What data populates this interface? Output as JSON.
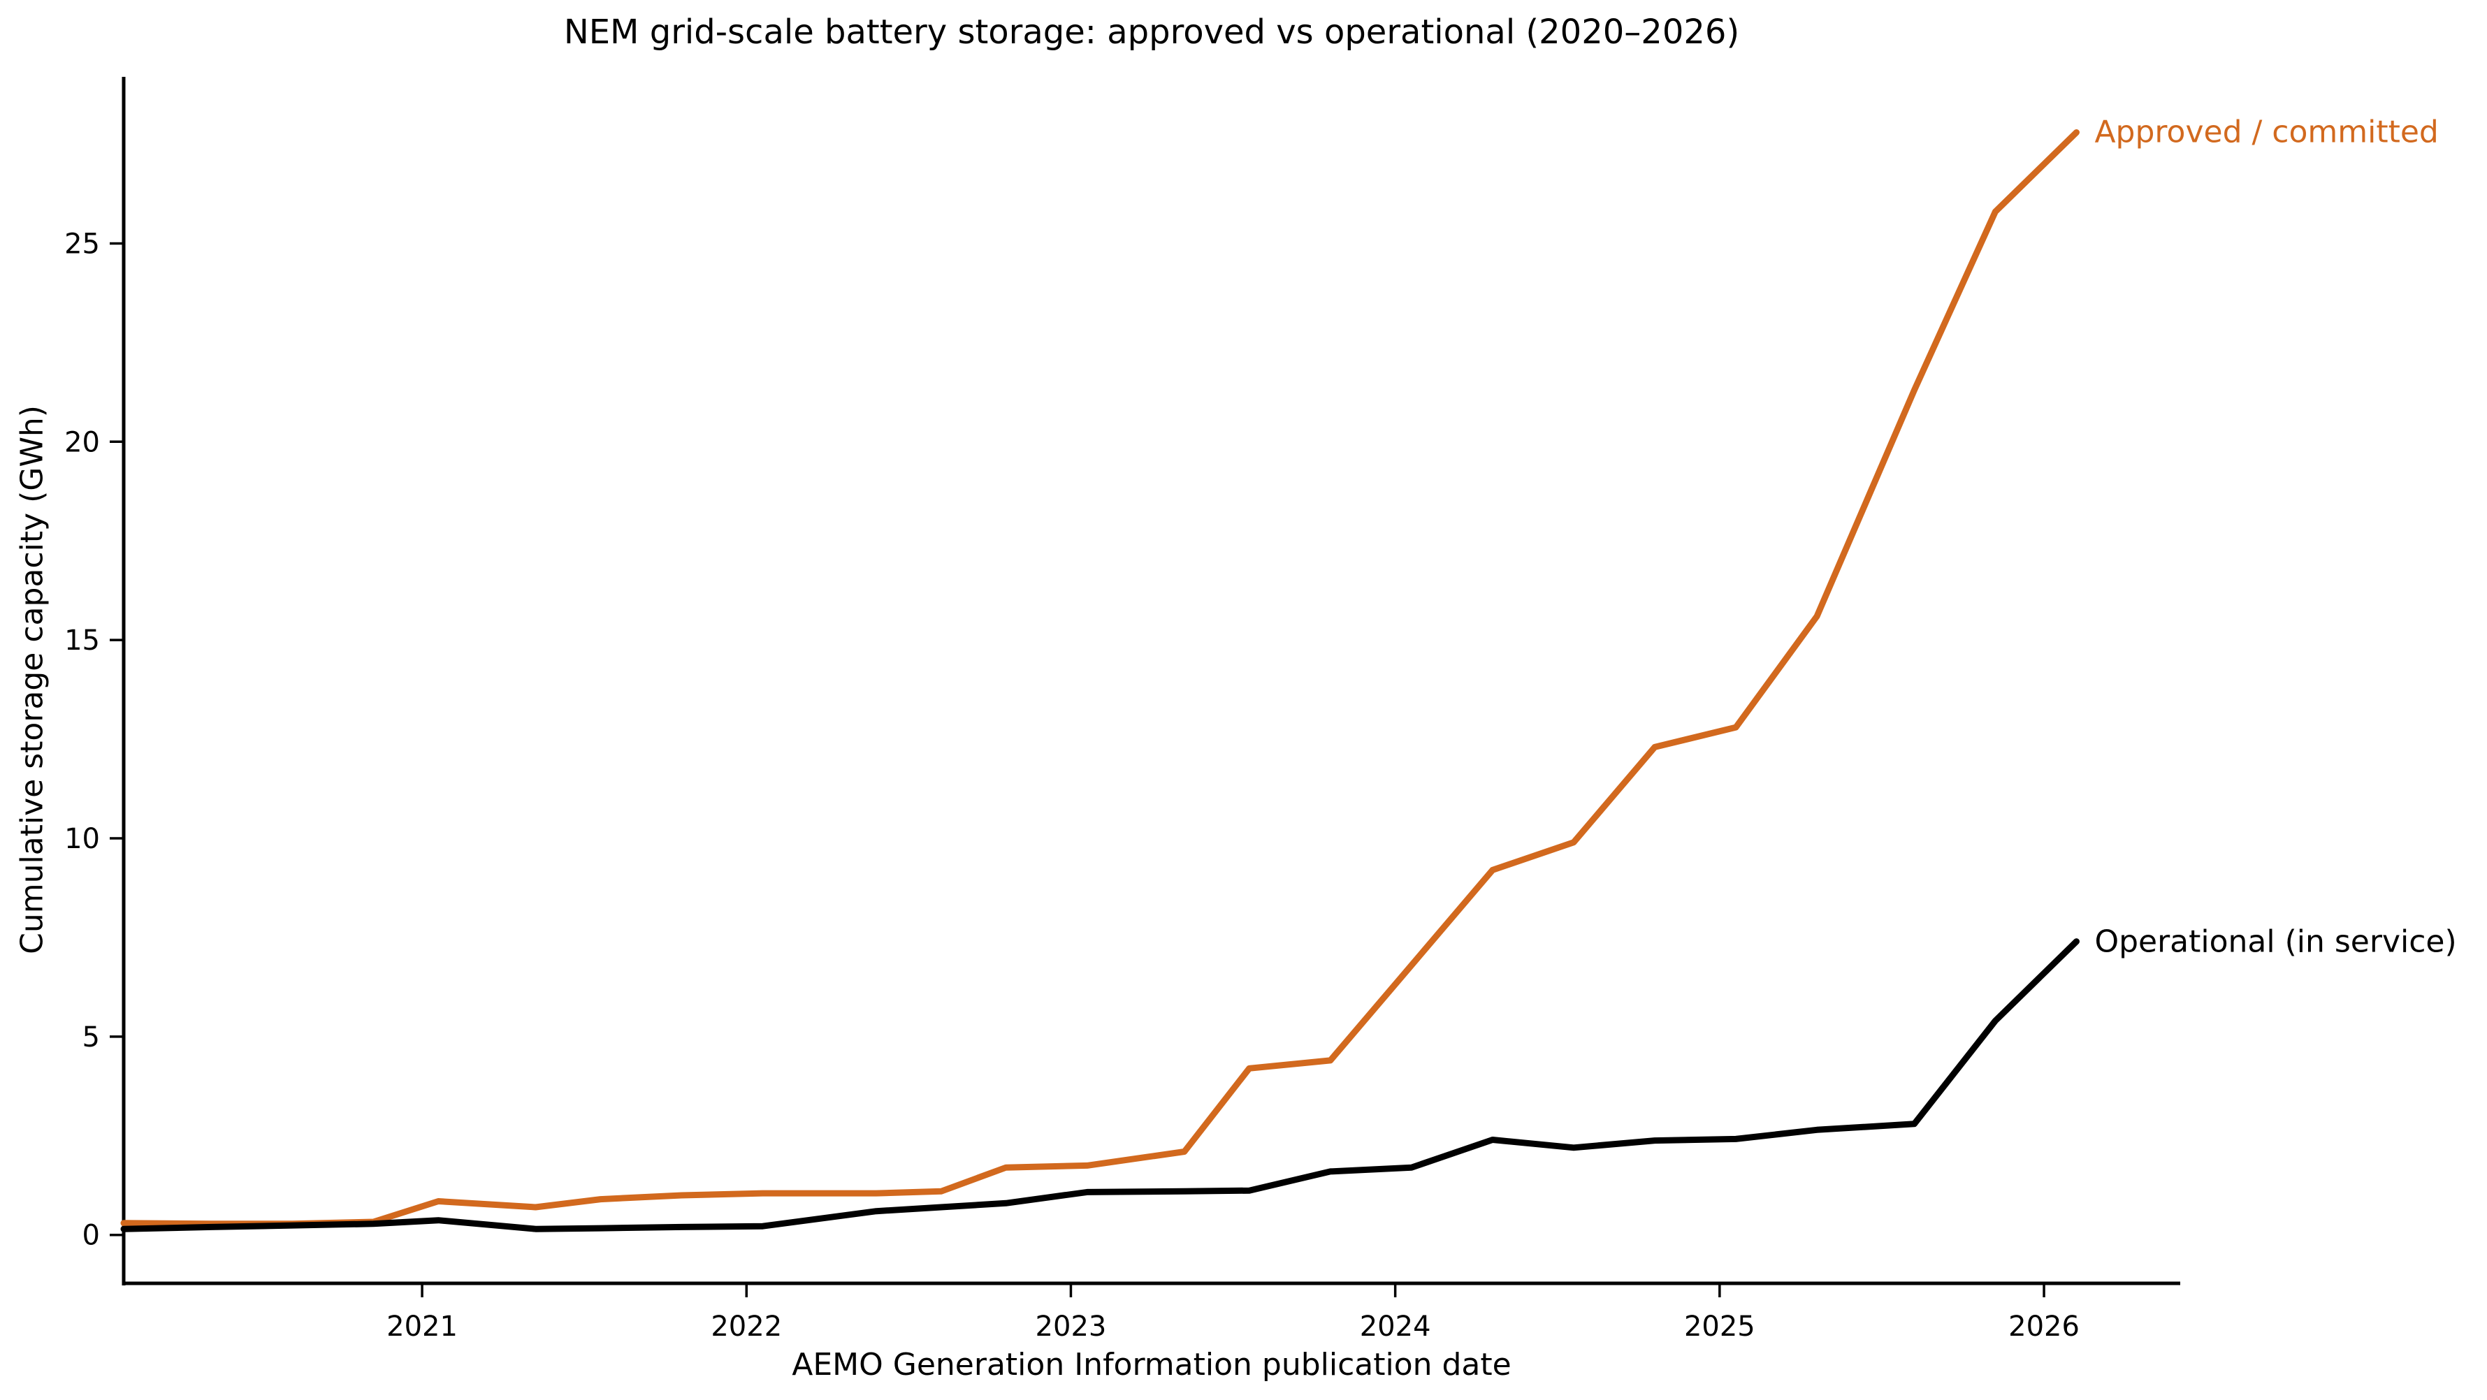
{
  "title": "NEM grid-scale battery storage: approved vs operational (2020–2026)",
  "axes": {
    "xlabel": "AEMO Generation Information publication date",
    "ylabel": "Cumulative storage capacity (GWh)"
  },
  "annotations": {
    "approved_label": "Approved / committed",
    "operational_label": "Operational (in service)"
  },
  "colors": {
    "approved": "#D2691E",
    "operational": "#000000",
    "axis": "#000000",
    "background": "#ffffff"
  },
  "chart_data": {
    "type": "line",
    "title": "NEM grid-scale battery storage: approved vs operational (2020–2026)",
    "xlabel": "AEMO Generation Information publication date",
    "ylabel": "Cumulative storage capacity (GWh)",
    "grid": false,
    "legend_position": "end-of-line annotations",
    "xlim": [
      2020.08,
      2026.42
    ],
    "ylim": [
      -1.22,
      29.2
    ],
    "x_ticks": [
      2021,
      2022,
      2023,
      2024,
      2025,
      2026
    ],
    "x_tick_labels": [
      "2021",
      "2022",
      "2023",
      "2024",
      "2025",
      "2026"
    ],
    "y_ticks": [
      0,
      5,
      10,
      15,
      20,
      25
    ],
    "y_tick_labels": [
      "0",
      "5",
      "10",
      "15",
      "20",
      "25"
    ],
    "x": [
      2020.08,
      2020.35,
      2020.6,
      2020.85,
      2021.05,
      2021.35,
      2021.55,
      2021.8,
      2022.05,
      2022.4,
      2022.6,
      2022.8,
      2023.05,
      2023.35,
      2023.55,
      2023.8,
      2024.05,
      2024.3,
      2024.55,
      2024.8,
      2025.05,
      2025.3,
      2025.6,
      2025.85,
      2026.1
    ],
    "series": [
      {
        "name": "Approved / committed",
        "color": "#D2691E",
        "values": [
          0.3,
          0.28,
          0.28,
          0.33,
          0.85,
          0.7,
          0.9,
          1.0,
          1.05,
          1.05,
          1.1,
          1.7,
          1.75,
          2.1,
          4.2,
          4.4,
          6.8,
          9.2,
          9.9,
          12.3,
          12.8,
          15.6,
          21.3,
          25.8,
          27.8
        ]
      },
      {
        "name": "Operational (in service)",
        "color": "#000000",
        "values": [
          0.15,
          0.2,
          0.24,
          0.28,
          0.37,
          0.15,
          0.17,
          0.2,
          0.22,
          0.6,
          0.7,
          0.8,
          1.08,
          1.1,
          1.12,
          1.6,
          1.7,
          2.4,
          2.2,
          2.38,
          2.42,
          2.65,
          2.8,
          5.4,
          7.4
        ]
      }
    ]
  }
}
